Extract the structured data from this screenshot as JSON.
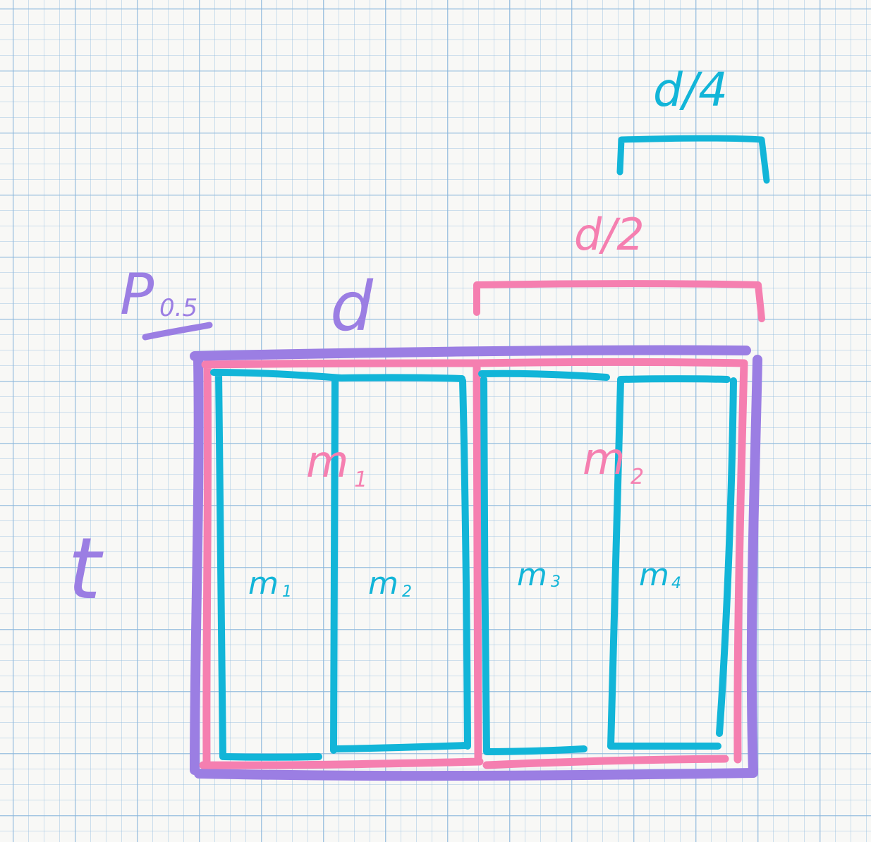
{
  "colors": {
    "purple": "#9b7ee3",
    "pink": "#f57fb0",
    "cyan": "#12b5d8",
    "paper": "#f8f8f6",
    "grid": "#8fbade"
  },
  "labels": {
    "p": "P",
    "p_sub": "0.5",
    "d_top": "d",
    "t_side": "t",
    "half": "d/2",
    "quarter": "d/4",
    "M1": "m",
    "M1_sub": "1",
    "M2": "m",
    "M2_sub": "2",
    "m1": "m",
    "m1_sub": "1",
    "m2": "m",
    "m2_sub": "2",
    "m3": "m",
    "m3_sub": "3",
    "m4": "m",
    "m4_sub": "4"
  }
}
